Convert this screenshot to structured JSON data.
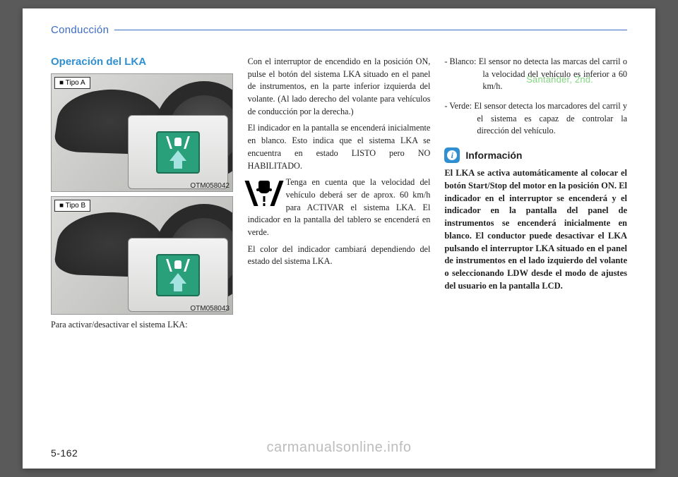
{
  "header": {
    "section": "Conducción"
  },
  "watermarks": {
    "right": "Santander, 2nd.",
    "bottom": "carmanualsonline.info"
  },
  "page_number": "5-162",
  "col1": {
    "title": "Operación del LKA",
    "fig_a": {
      "label": "■ Tipo A",
      "code": "OTM058042"
    },
    "fig_b": {
      "label": "■ Tipo B",
      "code": "OTM058043"
    },
    "caption": "Para activar/desactivar el sistema LKA:",
    "icon_button": {
      "bg_color": "#2aa07a",
      "arrow_color": "#a5e3e0",
      "lane_color": "#ffffff"
    }
  },
  "col2": {
    "p1": "Con el interruptor de encendido en la posición ON, pulse el botón del sistema LKA situado en el panel de instrumentos, en la parte inferior izquierda del volante. (Al lado derecho del volante para vehículos de conducción por la derecha.)",
    "p2": "El indicador en la pantalla se encenderá inicialmente en blanco. Esto indica que el sistema LKA se encuentra en estado LISTO pero NO HABILITADO.",
    "p3": "Tenga en cuenta que la velocidad del vehículo deberá ser de aprox. 60 km/h para ACTIVAR el sistema LKA. El indicador en la pantalla del tablero se encenderá en verde.",
    "p4": "El color del indicador cambiará dependiendo del estado del sistema LKA.",
    "icon_lane": {
      "fg": "#000000",
      "bg": "#ffffff"
    }
  },
  "col3": {
    "blanco_label": "- Blanco:",
    "blanco_text": "El sensor no detecta las marcas del carril o la velocidad del vehículo es inferior a 60 km/h.",
    "verde_label": "- Verde:",
    "verde_text": "El sensor detecta los marcadores del carril y el sistema es capaz de controlar la dirección del vehículo.",
    "info_title": "Información",
    "info_badge": {
      "bg": "#2f8fd0",
      "fg": "#ffffff",
      "letter": "i"
    },
    "info_body": "El LKA se activa automáticamente al colocar el botón Start/Stop del motor en la posición ON. El indicador en el interruptor se encenderá y el indicador en la pantalla del panel de instrumentos se encenderá inicialmente en blanco. El conductor puede desactivar el LKA pulsando el interruptor LKA situado en el panel de instrumentos en el lado izquierdo del volante o seleccionando LDW desde el modo de ajustes del usuario en la pantalla LCD."
  },
  "typography": {
    "body_fontsize_pt": 9,
    "title_color": "#2f8fd0",
    "header_color": "#3a6bc5",
    "text_color": "#222222"
  }
}
